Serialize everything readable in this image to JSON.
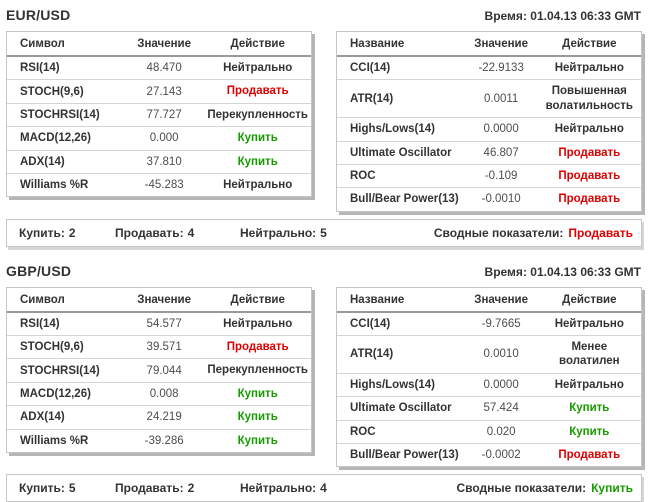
{
  "colors": {
    "buy_green": "#169b00",
    "sell_red": "#dd0000",
    "neutral_dark": "#333333"
  },
  "sections": [
    {
      "pair": "EUR/USD",
      "time": "Время: 01.04.13 06:33 GMT",
      "left_table": {
        "headers": [
          "Символ",
          "Значение",
          "Действие"
        ],
        "rows": [
          {
            "name": "RSI(14)",
            "value": "48.470",
            "action": "Нейтрально",
            "action_type": "neutral"
          },
          {
            "name": "STOCH(9,6)",
            "value": "27.143",
            "action": "Продавать",
            "action_type": "sell"
          },
          {
            "name": "STOCHRSI(14)",
            "value": "77.727",
            "action": "Перекупленность",
            "action_type": "neutral"
          },
          {
            "name": "MACD(12,26)",
            "value": "0.000",
            "action": "Купить",
            "action_type": "buy"
          },
          {
            "name": "ADX(14)",
            "value": "37.810",
            "action": "Купить",
            "action_type": "buy"
          },
          {
            "name": "Williams %R",
            "value": "-45.283",
            "action": "Нейтрально",
            "action_type": "neutral"
          }
        ]
      },
      "right_table": {
        "headers": [
          "Название",
          "Значение",
          "Действие"
        ],
        "rows": [
          {
            "name": "CCI(14)",
            "value": "-22.9133",
            "action": "Нейтрально",
            "action_type": "neutral"
          },
          {
            "name": "ATR(14)",
            "value": "0.0011",
            "action": "Повышенная волатильность",
            "action_type": "neutral"
          },
          {
            "name": "Highs/Lows(14)",
            "value": "0.0000",
            "action": "Нейтрально",
            "action_type": "neutral"
          },
          {
            "name": "Ultimate Oscillator",
            "value": "46.807",
            "action": "Продавать",
            "action_type": "sell"
          },
          {
            "name": "ROC",
            "value": "-0.109",
            "action": "Продавать",
            "action_type": "sell"
          },
          {
            "name": "Bull/Bear Power(13)",
            "value": "-0.0010",
            "action": "Продавать",
            "action_type": "sell"
          }
        ]
      },
      "summary": {
        "buy_label": "Купить:",
        "buy_count": "2",
        "sell_label": "Продавать:",
        "sell_count": "4",
        "neutral_label": "Нейтрально:",
        "neutral_count": "5",
        "overall_label": "Сводные показатели:",
        "overall_value": "Продавать",
        "overall_type": "sell"
      }
    },
    {
      "pair": "GBP/USD",
      "time": "Время: 01.04.13 06:33 GMT",
      "left_table": {
        "headers": [
          "Символ",
          "Значение",
          "Действие"
        ],
        "rows": [
          {
            "name": "RSI(14)",
            "value": "54.577",
            "action": "Нейтрально",
            "action_type": "neutral"
          },
          {
            "name": "STOCH(9,6)",
            "value": "39.571",
            "action": "Продавать",
            "action_type": "sell"
          },
          {
            "name": "STOCHRSI(14)",
            "value": "79.044",
            "action": "Перекупленность",
            "action_type": "neutral"
          },
          {
            "name": "MACD(12,26)",
            "value": "0.008",
            "action": "Купить",
            "action_type": "buy"
          },
          {
            "name": "ADX(14)",
            "value": "24.219",
            "action": "Купить",
            "action_type": "buy"
          },
          {
            "name": "Williams %R",
            "value": "-39.286",
            "action": "Купить",
            "action_type": "buy"
          }
        ]
      },
      "right_table": {
        "headers": [
          "Название",
          "Значение",
          "Действие"
        ],
        "rows": [
          {
            "name": "CCI(14)",
            "value": "-9.7665",
            "action": "Нейтрально",
            "action_type": "neutral"
          },
          {
            "name": "ATR(14)",
            "value": "0.0010",
            "action": "Менее волатилен",
            "action_type": "neutral"
          },
          {
            "name": "Highs/Lows(14)",
            "value": "0.0000",
            "action": "Нейтрально",
            "action_type": "neutral"
          },
          {
            "name": "Ultimate Oscillator",
            "value": "57.424",
            "action": "Купить",
            "action_type": "buy"
          },
          {
            "name": "ROC",
            "value": "0.020",
            "action": "Купить",
            "action_type": "buy"
          },
          {
            "name": "Bull/Bear Power(13)",
            "value": "-0.0002",
            "action": "Продавать",
            "action_type": "sell"
          }
        ]
      },
      "summary": {
        "buy_label": "Купить:",
        "buy_count": "5",
        "sell_label": "Продавать:",
        "sell_count": "2",
        "neutral_label": "Нейтрально:",
        "neutral_count": "4",
        "overall_label": "Сводные показатели:",
        "overall_value": "Купить",
        "overall_type": "buy"
      }
    }
  ]
}
